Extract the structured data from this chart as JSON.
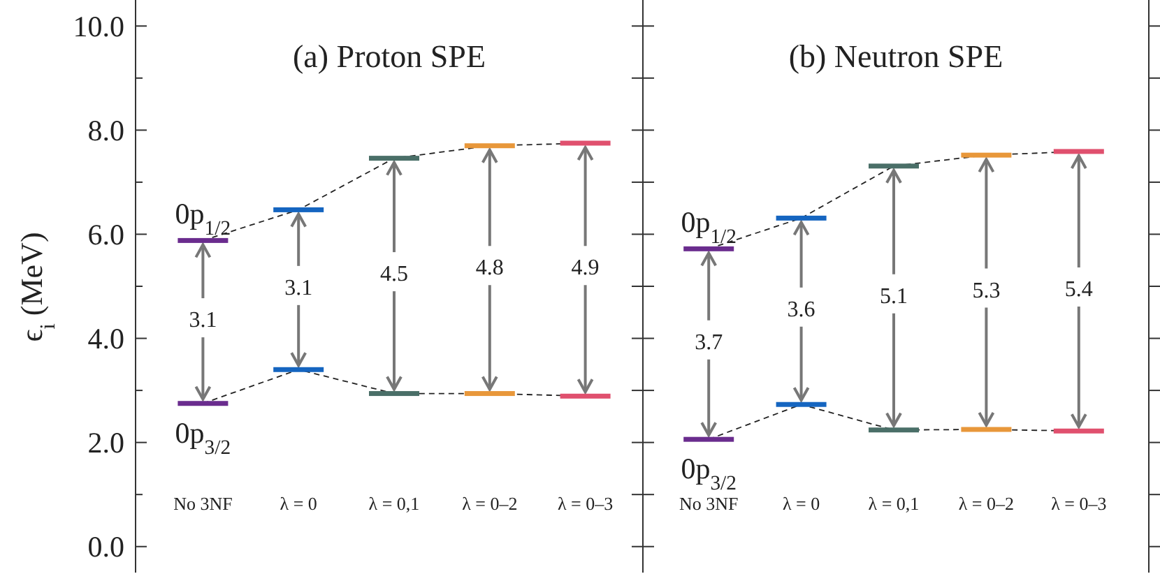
{
  "chart_data": [
    {
      "type": "line",
      "title": "(a) Proton SPE",
      "ylabel": "ϵ$_{i}$ (MeV)",
      "categories": [
        "No 3NF",
        "λ = 0",
        "λ = 0,1",
        "λ = 0–2",
        "λ = 0–3"
      ],
      "line_style": "dashed",
      "series": [
        {
          "name": "0p$_{1/2}$",
          "color": "#222222",
          "colors": [
            "#6a2c8e",
            "#1565c0",
            "#4a6f68",
            "#e8973a",
            "#e0506e"
          ],
          "values": [
            5.88,
            6.47,
            7.46,
            7.7,
            7.75
          ]
        },
        {
          "name": "0p$_{3/2}$",
          "color": "#222222",
          "colors": [
            "#6a2c8e",
            "#1565c0",
            "#4a6f68",
            "#e8973a",
            "#e0506e"
          ],
          "values": [
            2.75,
            3.4,
            2.94,
            2.94,
            2.89
          ]
        }
      ],
      "annotations": [
        {
          "text": "3.1",
          "x": "No 3NF",
          "y": 5.88
        },
        {
          "text": "3.1",
          "x": "λ = 0",
          "y": 6.47
        },
        {
          "text": "4.5",
          "x": "λ = 0,1",
          "y": 7.46
        },
        {
          "text": "4.8",
          "x": "λ = 0–2",
          "y": 7.7
        },
        {
          "text": "4.9",
          "x": "λ = 0–3",
          "y": 7.75
        }
      ],
      "ylim": [
        -0.5,
        10.5
      ],
      "yticks": [
        {
          "value": 0,
          "label": "0.0"
        },
        {
          "value": 1,
          "label": null
        },
        {
          "value": 2,
          "label": "2.0"
        },
        {
          "value": 3,
          "label": null
        },
        {
          "value": 4,
          "label": "4.0"
        },
        {
          "value": 5,
          "label": null
        },
        {
          "value": 6,
          "label": "6.0"
        },
        {
          "value": 7,
          "label": null
        },
        {
          "value": 8,
          "label": "8.0"
        },
        {
          "value": 9,
          "label": null
        },
        {
          "value": 10,
          "label": "10.0"
        }
      ]
    },
    {
      "type": "line",
      "title": "(b) Neutron SPE",
      "categories": [
        "No 3NF",
        "λ = 0",
        "λ = 0,1",
        "λ = 0–2",
        "λ = 0–3"
      ],
      "line_style": "dashed",
      "tick_labels": "x",
      "series": [
        {
          "name": "0p$_{1/2}$",
          "color": "#222222",
          "colors": [
            "#6a2c8e",
            "#1565c0",
            "#4a6f68",
            "#e8973a",
            "#e0506e"
          ],
          "values": [
            5.72,
            6.31,
            7.31,
            7.52,
            7.59
          ]
        },
        {
          "name": "0p$_{3/2}$",
          "color": "#222222",
          "colors": [
            "#6a2c8e",
            "#1565c0",
            "#4a6f68",
            "#e8973a",
            "#e0506e"
          ],
          "values": [
            2.06,
            2.73,
            2.24,
            2.25,
            2.22
          ]
        }
      ],
      "annotations": [
        {
          "text": "3.7",
          "x": "No 3NF",
          "y": 5.72
        },
        {
          "text": "3.6",
          "x": "λ = 0",
          "y": 6.31
        },
        {
          "text": "5.1",
          "x": "λ = 0,1",
          "y": 7.31
        },
        {
          "text": "5.3",
          "x": "λ = 0–2",
          "y": 7.52
        },
        {
          "text": "5.4",
          "x": "λ = 0–3",
          "y": 7.59
        }
      ],
      "ylim": [
        -0.5,
        10.5
      ],
      "yticks": [
        {
          "value": 0,
          "label": null
        },
        {
          "value": 1,
          "label": null
        },
        {
          "value": 2,
          "label": null
        },
        {
          "value": 3,
          "label": null
        },
        {
          "value": 4,
          "label": null
        },
        {
          "value": 5,
          "label": null
        },
        {
          "value": 6,
          "label": null
        },
        {
          "value": 7,
          "label": null
        },
        {
          "value": 8,
          "label": null
        },
        {
          "value": 9,
          "label": null
        },
        {
          "value": 10,
          "label": null
        }
      ]
    }
  ]
}
